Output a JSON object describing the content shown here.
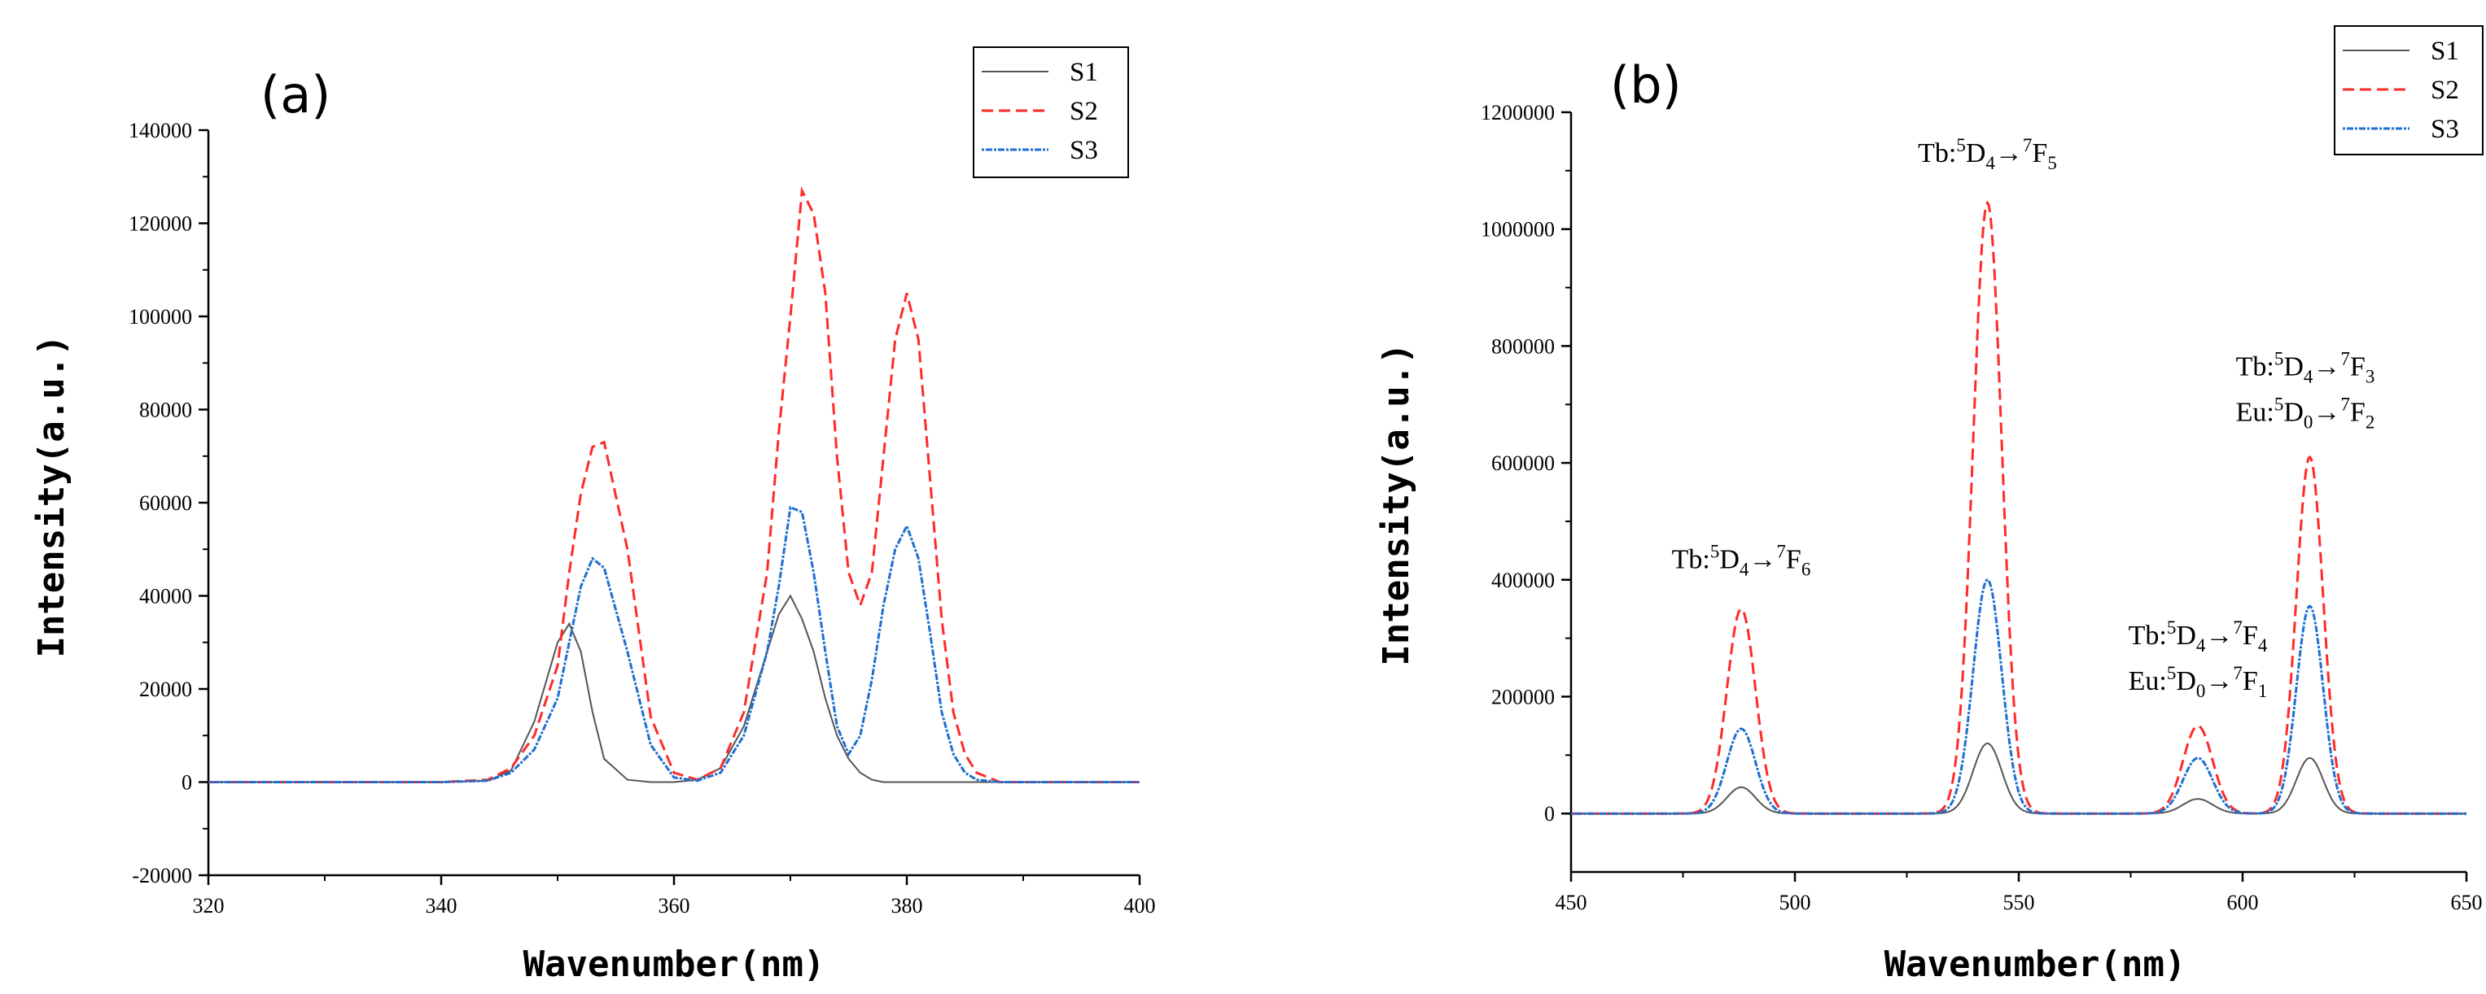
{
  "chart_data": [
    {
      "type": "line",
      "panel_label": "(a)",
      "xlabel": "Wavenumber(nm)",
      "ylabel": "Intensity(a.u.)",
      "xlim": [
        320,
        400
      ],
      "ylim": [
        -20000,
        140000
      ],
      "xticks": [
        320,
        340,
        360,
        380,
        400
      ],
      "yticks": [
        -20000,
        0,
        20000,
        40000,
        60000,
        80000,
        100000,
        120000,
        140000
      ],
      "legend": [
        "S1",
        "S2",
        "S3"
      ],
      "legend_position": "top-right",
      "x": [
        320,
        330,
        340,
        344,
        346,
        348,
        350,
        351,
        352,
        353,
        354,
        356,
        358,
        360,
        362,
        364,
        366,
        368,
        369,
        370,
        371,
        372,
        373,
        374,
        375,
        376,
        377,
        378,
        379,
        380,
        381,
        382,
        383,
        384,
        385,
        386,
        388,
        390,
        400
      ],
      "series": [
        {
          "name": "S1",
          "color": "#555555",
          "values": [
            0,
            0,
            0,
            300,
            2500,
            13000,
            30000,
            34000,
            28000,
            15000,
            5000,
            500,
            0,
            0,
            500,
            3000,
            12000,
            28000,
            36000,
            40000,
            35000,
            28000,
            18000,
            10000,
            5000,
            2000,
            500,
            0,
            0,
            0,
            0,
            0,
            0,
            0,
            0,
            0,
            0,
            0,
            0
          ]
        },
        {
          "name": "S2",
          "color": "#ff2a2a",
          "values": [
            0,
            0,
            0,
            500,
            3000,
            10000,
            25000,
            45000,
            62000,
            72000,
            73000,
            50000,
            14000,
            2000,
            500,
            3000,
            15000,
            45000,
            75000,
            100000,
            127000,
            122000,
            105000,
            70000,
            45000,
            38000,
            45000,
            70000,
            95000,
            105000,
            95000,
            65000,
            35000,
            15000,
            6000,
            2000,
            0,
            0,
            0
          ]
        },
        {
          "name": "S3",
          "color": "#1f6fd1",
          "values": [
            0,
            0,
            0,
            300,
            2000,
            7000,
            18000,
            30000,
            42000,
            48000,
            46000,
            28000,
            8000,
            1000,
            300,
            2000,
            10000,
            28000,
            42000,
            59000,
            58000,
            45000,
            28000,
            12000,
            6000,
            10000,
            22000,
            38000,
            50000,
            55000,
            48000,
            32000,
            15000,
            6000,
            2000,
            500,
            0,
            0,
            0
          ]
        }
      ]
    },
    {
      "type": "line",
      "panel_label": "(b)",
      "xlabel": "Wavenumber(nm)",
      "ylabel": "Intensity(a.u.)",
      "xlim": [
        450,
        650
      ],
      "ylim": [
        -100000,
        1200000
      ],
      "xticks": [
        450,
        500,
        550,
        600,
        650
      ],
      "yticks": [
        0,
        200000,
        400000,
        600000,
        800000,
        1000000,
        1200000
      ],
      "legend": [
        "S1",
        "S2",
        "S3"
      ],
      "legend_position": "top-right",
      "peaks": [
        {
          "center": 488,
          "sigma": 3.2,
          "heights": {
            "S1": 45000,
            "S2": 350000,
            "S3": 145000
          }
        },
        {
          "center": 543,
          "sigma": 3.2,
          "heights": {
            "S1": 120000,
            "S2": 1045000,
            "S3": 400000
          }
        },
        {
          "center": 590,
          "sigma": 3.3,
          "heights": {
            "S1": 25000,
            "S2": 150000,
            "S3": 95000
          }
        },
        {
          "center": 615,
          "sigma": 3.0,
          "heights": {
            "S1": 95000,
            "S2": 610000,
            "S3": 355000
          }
        }
      ],
      "series": [
        {
          "name": "S1",
          "color": "#555555"
        },
        {
          "name": "S2",
          "color": "#ff2a2a"
        },
        {
          "name": "S3",
          "color": "#1f6fd1"
        }
      ],
      "annotations": [
        {
          "lines": [
            [
              {
                "t": "Tb:"
              },
              {
                "t": "5",
                "sup": true
              },
              {
                "t": "D"
              },
              {
                "t": "4",
                "sub": true
              },
              {
                "t": "→"
              },
              {
                "t": "7",
                "sup": true
              },
              {
                "t": "F"
              },
              {
                "t": "6",
                "sub": true
              }
            ]
          ],
          "x": 488,
          "y": 420000
        },
        {
          "lines": [
            [
              {
                "t": "Tb:"
              },
              {
                "t": "5",
                "sup": true
              },
              {
                "t": "D"
              },
              {
                "t": "4",
                "sub": true
              },
              {
                "t": "→"
              },
              {
                "t": "7",
                "sup": true
              },
              {
                "t": "F"
              },
              {
                "t": "5",
                "sub": true
              }
            ]
          ],
          "x": 543,
          "y": 1115000
        },
        {
          "lines": [
            [
              {
                "t": "Tb:"
              },
              {
                "t": "5",
                "sup": true
              },
              {
                "t": "D"
              },
              {
                "t": "4",
                "sub": true
              },
              {
                "t": "→"
              },
              {
                "t": "7",
                "sup": true
              },
              {
                "t": "F"
              },
              {
                "t": "4",
                "sub": true
              }
            ],
            [
              {
                "t": "Eu:"
              },
              {
                "t": "5",
                "sup": true
              },
              {
                "t": "D"
              },
              {
                "t": "0",
                "sub": true
              },
              {
                "t": "→"
              },
              {
                "t": "7",
                "sup": true
              },
              {
                "t": "F"
              },
              {
                "t": "1",
                "sub": true
              }
            ]
          ],
          "x": 590,
          "y": 290000
        },
        {
          "lines": [
            [
              {
                "t": "Tb:"
              },
              {
                "t": "5",
                "sup": true
              },
              {
                "t": "D"
              },
              {
                "t": "4",
                "sub": true
              },
              {
                "t": "→"
              },
              {
                "t": "7",
                "sup": true
              },
              {
                "t": "F"
              },
              {
                "t": "3",
                "sub": true
              }
            ],
            [
              {
                "t": "Eu:"
              },
              {
                "t": "5",
                "sup": true
              },
              {
                "t": "D"
              },
              {
                "t": "0",
                "sub": true
              },
              {
                "t": "→"
              },
              {
                "t": "7",
                "sup": true
              },
              {
                "t": "F"
              },
              {
                "t": "2",
                "sub": true
              }
            ]
          ],
          "x": 614,
          "y": 750000
        }
      ]
    }
  ]
}
